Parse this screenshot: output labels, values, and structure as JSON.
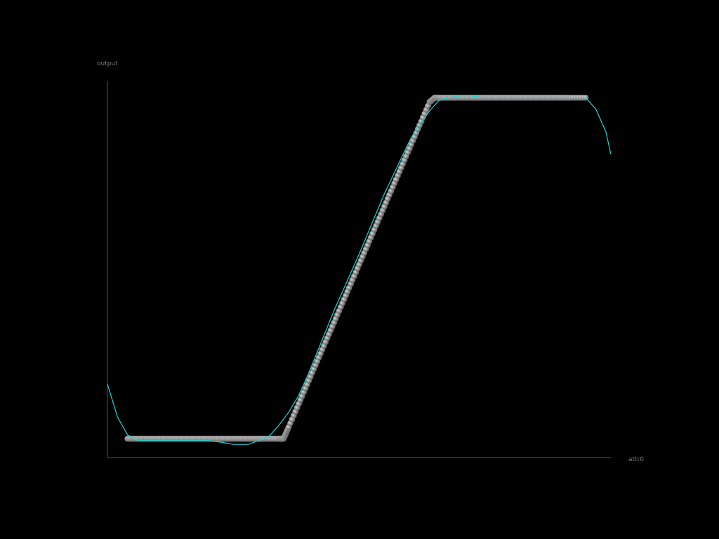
{
  "chart_data": {
    "type": "scatter",
    "xlabel": "attr0",
    "ylabel": "output",
    "grid": false,
    "legend": "none",
    "xlim": [
      0,
      1
    ],
    "ylim": [
      0,
      1
    ],
    "colors": {
      "background": "#000000",
      "axis": "#555555",
      "points": "#a8a8a8",
      "fit_line": "#1fd6d6"
    },
    "series": [
      {
        "kind": "points",
        "x": [
          0.04,
          0.06,
          0.08,
          0.1,
          0.12,
          0.14,
          0.16,
          0.18,
          0.2,
          0.22,
          0.24,
          0.26,
          0.28,
          0.3,
          0.32,
          0.34,
          0.35,
          0.36,
          0.38,
          0.4,
          0.42,
          0.44,
          0.46,
          0.48,
          0.5,
          0.52,
          0.54,
          0.56,
          0.58,
          0.6,
          0.62,
          0.64,
          0.65,
          0.66,
          0.68,
          0.7,
          0.72,
          0.74,
          0.76,
          0.78,
          0.8,
          0.82,
          0.84,
          0.86,
          0.88,
          0.9,
          0.92,
          0.95
        ],
        "y": [
          0.05,
          0.05,
          0.05,
          0.05,
          0.05,
          0.05,
          0.05,
          0.05,
          0.05,
          0.05,
          0.05,
          0.05,
          0.05,
          0.05,
          0.05,
          0.05,
          0.05,
          0.0808,
          0.1424,
          0.204,
          0.2656,
          0.3272,
          0.3888,
          0.4504,
          0.512,
          0.5736,
          0.6352,
          0.6968,
          0.7584,
          0.82,
          0.8816,
          0.9432,
          0.955,
          0.955,
          0.955,
          0.955,
          0.955,
          0.955,
          0.955,
          0.955,
          0.955,
          0.955,
          0.955,
          0.955,
          0.955,
          0.955,
          0.955,
          0.955
        ]
      },
      {
        "kind": "line",
        "x": [
          0.0,
          0.02,
          0.04,
          0.06,
          0.08,
          0.1,
          0.15,
          0.2,
          0.23,
          0.25,
          0.28,
          0.3,
          0.32,
          0.34,
          0.36,
          0.38,
          0.4,
          0.45,
          0.5,
          0.55,
          0.6,
          0.62,
          0.64,
          0.66,
          0.68,
          0.7,
          0.72,
          0.75,
          0.8,
          0.85,
          0.9,
          0.95,
          0.97,
          0.99,
          1.0
        ],
        "y": [
          0.195,
          0.108,
          0.06,
          0.045,
          0.045,
          0.045,
          0.045,
          0.045,
          0.04,
          0.035,
          0.035,
          0.045,
          0.055,
          0.085,
          0.12,
          0.165,
          0.225,
          0.39,
          0.54,
          0.7,
          0.84,
          0.885,
          0.92,
          0.95,
          0.955,
          0.96,
          0.96,
          0.955,
          0.955,
          0.955,
          0.955,
          0.955,
          0.925,
          0.865,
          0.805
        ]
      }
    ]
  }
}
